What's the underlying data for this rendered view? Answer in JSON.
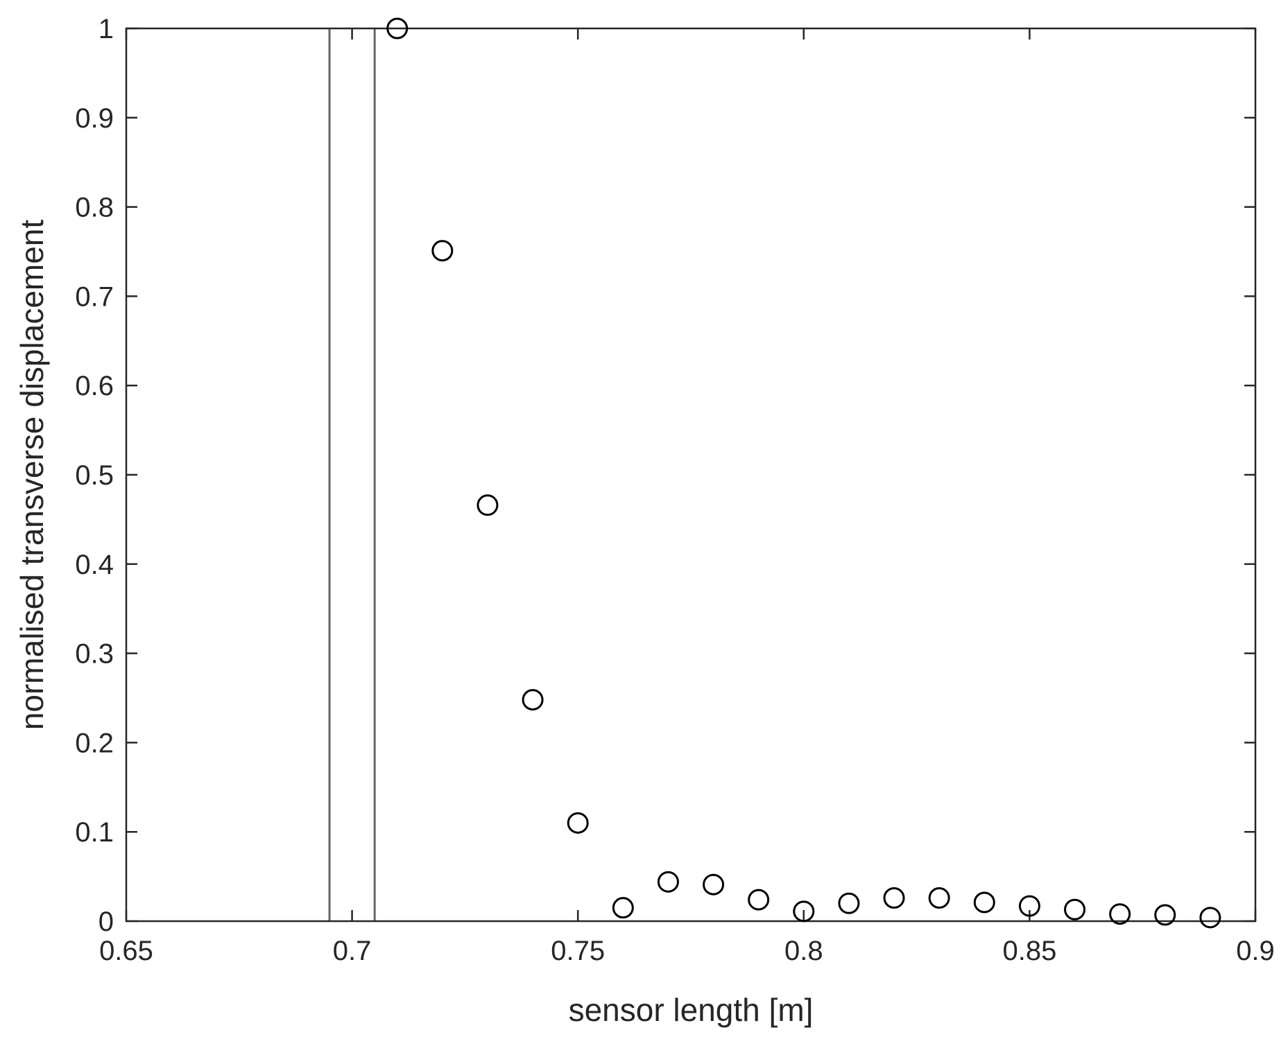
{
  "chart_data": {
    "type": "scatter",
    "title": "",
    "xlabel": "sensor length [m]",
    "ylabel": "normalised transverse displacement",
    "xlim": [
      0.65,
      0.9
    ],
    "ylim": [
      0,
      1
    ],
    "xticks": [
      0.65,
      0.7,
      0.75,
      0.8,
      0.85,
      0.9
    ],
    "xtick_labels": [
      "0.65",
      "0.7",
      "0.75",
      "0.8",
      "0.85",
      "0.9"
    ],
    "yticks": [
      0,
      0.1,
      0.2,
      0.3,
      0.4,
      0.5,
      0.6,
      0.7,
      0.8,
      0.9,
      1
    ],
    "ytick_labels": [
      "0",
      "0.1",
      "0.2",
      "0.3",
      "0.4",
      "0.5",
      "0.6",
      "0.7",
      "0.8",
      "0.9",
      "1"
    ],
    "grid": false,
    "marker": "open-circle",
    "marker_color": "#000000",
    "reference_lines": {
      "orientation": "vertical",
      "x": [
        0.695,
        0.705
      ],
      "color": "#666666"
    },
    "series": [
      {
        "x": [
          0.71,
          0.72,
          0.73,
          0.74,
          0.75,
          0.76,
          0.77,
          0.78,
          0.79,
          0.8,
          0.81,
          0.82,
          0.83,
          0.84,
          0.85,
          0.86,
          0.87,
          0.88,
          0.89
        ],
        "y": [
          1.0,
          0.751,
          0.466,
          0.248,
          0.11,
          0.015,
          0.044,
          0.041,
          0.024,
          0.011,
          0.02,
          0.026,
          0.026,
          0.021,
          0.017,
          0.013,
          0.008,
          0.007,
          0.004
        ]
      }
    ]
  }
}
